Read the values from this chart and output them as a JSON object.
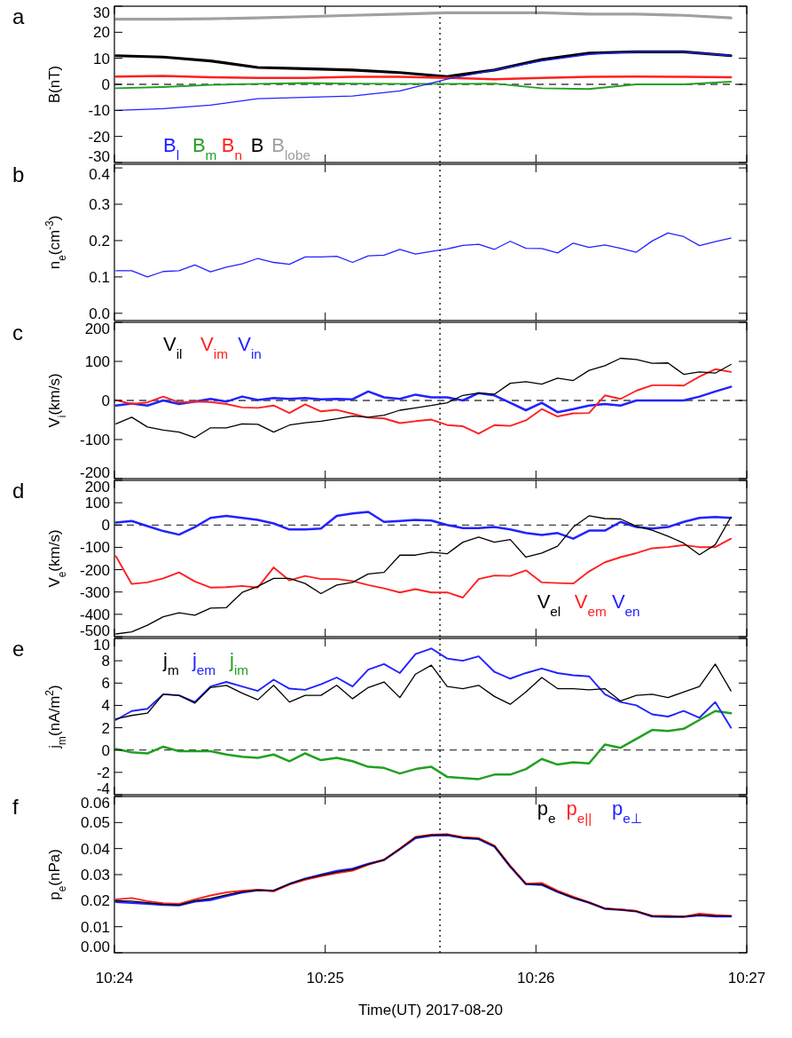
{
  "chart_data": [
    {
      "type": "line",
      "annotations": [
        "a"
      ],
      "ylabel": "B(nT)",
      "xlim": [
        10.4,
        10.45
      ],
      "xticks": [
        {
          "value": 10.4,
          "label": null
        },
        {
          "value": 10.41667,
          "label": null
        },
        {
          "value": 10.43333,
          "label": null
        },
        {
          "value": 10.45,
          "label": null
        }
      ],
      "ylim": [
        -30,
        30
      ],
      "yticks": [
        -30,
        -20,
        -10,
        0,
        10,
        20,
        30
      ],
      "tick_labels": "y",
      "legend": "bottom left",
      "x": [
        10.40012,
        10.40386,
        10.4076,
        10.41134,
        10.41508,
        10.41883,
        10.42257,
        10.42631,
        10.43005,
        10.43379,
        10.43753,
        10.44127,
        10.44501,
        10.44875
      ],
      "ref_lines": [
        {
          "axis": "x",
          "value": 10.42574,
          "line_style": "dotted"
        },
        {
          "axis": "y",
          "value": 0,
          "line_style": "dashed"
        }
      ],
      "series": [
        {
          "name": "B$_{l}$",
          "color": "#2222ff",
          "values": [
            -10,
            -9.3,
            -8,
            -5.5,
            -5,
            -4.5,
            -2.5,
            2,
            5.5,
            9,
            11.5,
            12.5,
            12.5,
            11
          ]
        },
        {
          "name": "B$_{m}$",
          "color": "#22a022",
          "values": [
            -1.5,
            -1,
            -0.2,
            0.2,
            0.5,
            0.3,
            0.2,
            0.2,
            0.3,
            -1.5,
            -1.8,
            0,
            0,
            1
          ]
        },
        {
          "name": "B$_{n}$",
          "color": "#ff2020",
          "values": [
            3,
            3.2,
            2.7,
            2.5,
            2.5,
            2.9,
            2.9,
            2.5,
            2,
            2.5,
            2.9,
            3,
            2.9,
            2.7
          ]
        },
        {
          "name": "B",
          "color": "#000000",
          "values": [
            11,
            10.5,
            9,
            6.5,
            6,
            5.5,
            4.5,
            3,
            5.5,
            9.5,
            12,
            12.5,
            12.5,
            11
          ]
        },
        {
          "name": "B$_{lobe}$",
          "color": "#a0a0a0",
          "values": [
            25,
            25,
            25.2,
            25.5,
            26,
            26.5,
            27,
            27.5,
            27.5,
            27.5,
            27,
            27,
            26.5,
            25.5
          ]
        }
      ]
    },
    {
      "type": "line",
      "annotations": [
        "b"
      ],
      "ylabel": "n$_{e}$(cm$^{-3}$)",
      "xlim": [
        10.4,
        10.45
      ],
      "xticks": [
        {
          "value": 10.4,
          "label": null
        },
        {
          "value": 10.41667,
          "label": null
        },
        {
          "value": 10.43333,
          "label": null
        },
        {
          "value": 10.45,
          "label": null
        }
      ],
      "ylim": [
        -0.02,
        0.41
      ],
      "yticks": [
        {
          "value": 0,
          "label": "0.0"
        },
        0.1,
        0.2,
        0.3,
        0.4
      ],
      "tick_labels": "y",
      "x": [
        10.40012,
        10.40137,
        10.40261,
        10.40386,
        10.40511,
        10.40636,
        10.4076,
        10.40885,
        10.4101,
        10.41134,
        10.41259,
        10.41384,
        10.41508,
        10.41633,
        10.41758,
        10.41883,
        10.42007,
        10.42132,
        10.42257,
        10.42381,
        10.42506,
        10.42631,
        10.42755,
        10.4288,
        10.43005,
        10.4313,
        10.43254,
        10.43379,
        10.43504,
        10.43628,
        10.43753,
        10.43878,
        10.44002,
        10.44127,
        10.44252,
        10.44377,
        10.44501,
        10.44626,
        10.44751,
        10.44875
      ],
      "ref_lines": [
        {
          "axis": "x",
          "value": 10.42574,
          "line_style": "dotted"
        }
      ],
      "series": [
        {
          "color": "#2222ff",
          "values": [
            0.117,
            0.117,
            0.1,
            0.115,
            0.117,
            0.133,
            0.114,
            0.127,
            0.136,
            0.151,
            0.14,
            0.135,
            0.155,
            0.155,
            0.157,
            0.14,
            0.158,
            0.16,
            0.176,
            0.163,
            0.17,
            0.177,
            0.187,
            0.19,
            0.176,
            0.198,
            0.179,
            0.178,
            0.166,
            0.193,
            0.181,
            0.188,
            0.179,
            0.168,
            0.199,
            0.221,
            0.211,
            0.186,
            0.197,
            0.207
          ]
        }
      ]
    },
    {
      "type": "line",
      "annotations": [
        "c"
      ],
      "ylabel": "V$_{i}$(km/s)",
      "xlim": [
        10.4,
        10.45
      ],
      "xticks": [
        {
          "value": 10.4,
          "label": null
        },
        {
          "value": 10.41667,
          "label": null
        },
        {
          "value": 10.43333,
          "label": null
        },
        {
          "value": 10.45,
          "label": null
        }
      ],
      "ylim": [
        -200,
        200
      ],
      "yticks": [
        -200,
        -100,
        0,
        100,
        200
      ],
      "tick_labels": "y",
      "legend": "top left",
      "x": [
        10.40012,
        10.40137,
        10.40261,
        10.40386,
        10.40511,
        10.40636,
        10.4076,
        10.40885,
        10.4101,
        10.41134,
        10.41259,
        10.41384,
        10.41508,
        10.41633,
        10.41758,
        10.41883,
        10.42007,
        10.42132,
        10.42257,
        10.42381,
        10.42506,
        10.42631,
        10.42755,
        10.4288,
        10.43005,
        10.4313,
        10.43254,
        10.43379,
        10.43504,
        10.43628,
        10.43753,
        10.43878,
        10.44002,
        10.44127,
        10.44252,
        10.44377,
        10.44501,
        10.44626,
        10.44751,
        10.44875
      ],
      "ref_lines": [
        {
          "axis": "x",
          "value": 10.42574,
          "line_style": "dotted"
        },
        {
          "axis": "y",
          "value": 0,
          "line_style": "dashed"
        }
      ],
      "series": [
        {
          "name": "V$_{il}$",
          "color": "#000000",
          "values": [
            -60,
            -43,
            -68,
            -76,
            -81,
            -95,
            -70,
            -70,
            -60,
            -61,
            -81,
            -63,
            -57,
            -53,
            -47,
            -40,
            -43,
            -38,
            -25,
            -19,
            -13,
            -6,
            13,
            19,
            16,
            44,
            48,
            42,
            57,
            51,
            77,
            89,
            108,
            105,
            95,
            96,
            67,
            73,
            70,
            92
          ]
        },
        {
          "name": "V$_{im}$",
          "color": "#ff2020",
          "values": [
            1,
            -9,
            -5,
            10,
            -5,
            -3,
            -4,
            -9,
            -18,
            -19,
            -13,
            -32,
            -10,
            -28,
            -24,
            -34,
            -44,
            -46,
            -58,
            -53,
            -49,
            -63,
            -66,
            -85,
            -63,
            -65,
            -51,
            -22,
            -41,
            -33,
            -32,
            13,
            4,
            25,
            39,
            39,
            38,
            61,
            80,
            73
          ]
        },
        {
          "name": "V$_{in}$",
          "color": "#2222ff",
          "values": [
            -13,
            -8,
            -13,
            0,
            -9,
            -3,
            4,
            -3,
            10,
            1,
            6,
            4,
            6,
            3,
            4,
            3,
            23,
            8,
            4,
            15,
            8,
            8,
            0,
            19,
            13,
            -6,
            -25,
            -6,
            -30,
            -22,
            -13,
            -9,
            -13,
            0,
            0,
            0,
            0,
            10,
            23,
            35
          ]
        }
      ]
    },
    {
      "type": "line",
      "annotations": [
        "d"
      ],
      "ylabel": "V$_{e}$(km/s)",
      "xlim": [
        10.4,
        10.45
      ],
      "xticks": [
        {
          "value": 10.4,
          "label": null
        },
        {
          "value": 10.41667,
          "label": null
        },
        {
          "value": 10.43333,
          "label": null
        },
        {
          "value": 10.45,
          "label": null
        }
      ],
      "ylim": [
        -500,
        200
      ],
      "yticks": [
        -500,
        -400,
        -300,
        -200,
        -100,
        0,
        100,
        200
      ],
      "tick_labels": "y",
      "legend": "bottom right",
      "x": [
        10.40012,
        10.40137,
        10.40261,
        10.40386,
        10.40511,
        10.40636,
        10.4076,
        10.40885,
        10.4101,
        10.41134,
        10.41259,
        10.41384,
        10.41508,
        10.41633,
        10.41758,
        10.41883,
        10.42007,
        10.42132,
        10.42257,
        10.42381,
        10.42506,
        10.42631,
        10.42755,
        10.4288,
        10.43005,
        10.4313,
        10.43254,
        10.43379,
        10.43504,
        10.43628,
        10.43753,
        10.43878,
        10.44002,
        10.44127,
        10.44252,
        10.44377,
        10.44501,
        10.44626,
        10.44751,
        10.44875
      ],
      "ref_lines": [
        {
          "axis": "x",
          "value": 10.42574,
          "line_style": "dotted"
        },
        {
          "axis": "y",
          "value": 0,
          "line_style": "dashed"
        }
      ],
      "series": [
        {
          "name": "V$_{el}$",
          "color": "#000000",
          "values": [
            -488,
            -479,
            -449,
            -411,
            -393,
            -404,
            -372,
            -370,
            -302,
            -275,
            -239,
            -239,
            -262,
            -307,
            -269,
            -257,
            -219,
            -212,
            -135,
            -135,
            -122,
            -129,
            -77,
            -54,
            -77,
            -65,
            -144,
            -126,
            -95,
            -9,
            41,
            29,
            27,
            -5,
            -23,
            -50,
            -81,
            -133,
            -88,
            36
          ]
        },
        {
          "name": "V$_{em}$",
          "color": "#ff2020",
          "values": [
            -140,
            -264,
            -257,
            -239,
            -212,
            -253,
            -280,
            -278,
            -273,
            -280,
            -190,
            -248,
            -228,
            -242,
            -242,
            -251,
            -269,
            -284,
            -302,
            -287,
            -302,
            -302,
            -325,
            -242,
            -226,
            -228,
            -203,
            -257,
            -260,
            -262,
            -208,
            -167,
            -144,
            -126,
            -104,
            -99,
            -90,
            -99,
            -99,
            -61
          ]
        },
        {
          "name": "V$_{en}$",
          "color": "#2222ff",
          "values": [
            11,
            18,
            -5,
            -27,
            -43,
            -9,
            32,
            41,
            32,
            23,
            7,
            -20,
            -20,
            -16,
            41,
            52,
            59,
            14,
            18,
            23,
            20,
            0,
            -14,
            -14,
            -9,
            -20,
            -36,
            -45,
            -36,
            -61,
            -25,
            -25,
            14,
            -9,
            -16,
            -9,
            14,
            32,
            36,
            32
          ]
        }
      ]
    },
    {
      "type": "line",
      "annotations": [
        "e"
      ],
      "ylabel": "j$_{m}$(nA/m$^{2}$)",
      "xlim": [
        10.4,
        10.45
      ],
      "xticks": [
        {
          "value": 10.4,
          "label": null
        },
        {
          "value": 10.41667,
          "label": null
        },
        {
          "value": 10.43333,
          "label": null
        },
        {
          "value": 10.45,
          "label": null
        }
      ],
      "ylim": [
        -4,
        10
      ],
      "yticks": [
        -4,
        -2,
        0,
        2,
        4,
        6,
        8,
        10
      ],
      "tick_labels": "y",
      "legend": "top left",
      "x": [
        10.40012,
        10.40137,
        10.40261,
        10.40386,
        10.40511,
        10.40636,
        10.4076,
        10.40885,
        10.4101,
        10.41134,
        10.41259,
        10.41384,
        10.41508,
        10.41633,
        10.41758,
        10.41883,
        10.42007,
        10.42132,
        10.42257,
        10.42381,
        10.42506,
        10.42631,
        10.42755,
        10.4288,
        10.43005,
        10.4313,
        10.43254,
        10.43379,
        10.43504,
        10.43628,
        10.43753,
        10.43878,
        10.44002,
        10.44127,
        10.44252,
        10.44377,
        10.44501,
        10.44626,
        10.44751,
        10.44875
      ],
      "ref_lines": [
        {
          "axis": "x",
          "value": 10.42574,
          "line_style": "dotted"
        },
        {
          "axis": "y",
          "value": 0,
          "line_style": "dashed"
        }
      ],
      "series": [
        {
          "name": "j$_{m}$",
          "color": "#000000",
          "values": [
            2.8,
            3.1,
            3.3,
            5,
            4.9,
            4.2,
            5.6,
            5.8,
            5.1,
            4.5,
            5.8,
            4.3,
            4.9,
            4.9,
            5.8,
            4.6,
            5.6,
            6.1,
            4.7,
            6.8,
            7.6,
            5.7,
            5.5,
            5.8,
            4.8,
            4.1,
            5.2,
            6.5,
            5.5,
            5.5,
            5.4,
            5.5,
            4.4,
            4.9,
            5,
            4.7,
            5.2,
            5.7,
            7.7,
            5.3
          ]
        },
        {
          "name": "j$_{em}$",
          "color": "#2222ff",
          "values": [
            2.7,
            3.5,
            3.7,
            5,
            4.9,
            4.3,
            5.7,
            6.1,
            5.7,
            5.3,
            6.3,
            5.5,
            5.4,
            5.9,
            6.5,
            5.7,
            7.2,
            7.7,
            6.9,
            8.6,
            9.1,
            8.2,
            8,
            8.4,
            7,
            6.4,
            6.9,
            7.3,
            6.9,
            6.7,
            6.6,
            5,
            4.3,
            4,
            3.2,
            3,
            3.5,
            2.9,
            4.3,
            2
          ]
        },
        {
          "name": "j$_{im}$",
          "color": "#22a022",
          "values": [
            0.1,
            -0.2,
            -0.3,
            0.3,
            -0.1,
            -0.1,
            -0.1,
            -0.4,
            -0.6,
            -0.7,
            -0.4,
            -1,
            -0.3,
            -0.9,
            -0.7,
            -1,
            -1.5,
            -1.6,
            -2.1,
            -1.7,
            -1.5,
            -2.4,
            -2.5,
            -2.6,
            -2.2,
            -2.2,
            -1.7,
            -0.8,
            -1.3,
            -1.1,
            -1.2,
            0.5,
            0.2,
            1,
            1.8,
            1.7,
            1.9,
            2.7,
            3.5,
            3.3
          ]
        }
      ]
    },
    {
      "type": "line",
      "annotations": [
        "f"
      ],
      "ylabel": "p$_{e}$(nPa)",
      "xlabel": "Time(UT) 2017-08-20",
      "xlim": [
        10.4,
        10.45
      ],
      "xticks": [
        {
          "value": 10.4,
          "label": "10:24"
        },
        {
          "value": 10.41667,
          "label": "10:25"
        },
        {
          "value": 10.43333,
          "label": "10:26"
        },
        {
          "value": 10.45,
          "label": "10:27"
        }
      ],
      "ylim": [
        0,
        0.06
      ],
      "yticks": [
        {
          "value": 0,
          "label": "0.00"
        },
        {
          "value": 0.01,
          "label": "0.01"
        },
        {
          "value": 0.02,
          "label": "0.02"
        },
        {
          "value": 0.03,
          "label": "0.03"
        },
        {
          "value": 0.04,
          "label": "0.04"
        },
        {
          "value": 0.05,
          "label": "0.05"
        },
        {
          "value": 0.06,
          "label": "0.06"
        }
      ],
      "legend": "top right",
      "x": [
        10.40012,
        10.40137,
        10.40261,
        10.40386,
        10.40511,
        10.40636,
        10.4076,
        10.40885,
        10.4101,
        10.41134,
        10.41259,
        10.41384,
        10.41508,
        10.41633,
        10.41758,
        10.41883,
        10.42007,
        10.42132,
        10.42257,
        10.42381,
        10.42506,
        10.42631,
        10.42755,
        10.4288,
        10.43005,
        10.4313,
        10.43254,
        10.43379,
        10.43504,
        10.43628,
        10.43753,
        10.43878,
        10.44002,
        10.44127,
        10.44252,
        10.44377,
        10.44501,
        10.44626,
        10.44751,
        10.44875
      ],
      "ref_lines": [
        {
          "axis": "x",
          "value": 10.42574,
          "line_style": "dotted"
        }
      ],
      "series": [
        {
          "name": "p$_{e}$",
          "color": "#000000",
          "values": [
            0.02,
            0.0198,
            0.0192,
            0.0186,
            0.0184,
            0.02,
            0.0208,
            0.0222,
            0.0234,
            0.0241,
            0.0238,
            0.0264,
            0.0283,
            0.0297,
            0.031,
            0.0319,
            0.034,
            0.0357,
            0.0399,
            0.0443,
            0.0452,
            0.0454,
            0.0442,
            0.0438,
            0.0409,
            0.0332,
            0.0264,
            0.0263,
            0.0235,
            0.0212,
            0.0193,
            0.017,
            0.0165,
            0.0159,
            0.0141,
            0.0139,
            0.0139,
            0.0145,
            0.0142,
            0.0141
          ]
        },
        {
          "name": "p$_{e||}$",
          "color": "#ff2020",
          "values": [
            0.0205,
            0.021,
            0.0198,
            0.019,
            0.0188,
            0.0205,
            0.022,
            0.0232,
            0.0238,
            0.0242,
            0.0236,
            0.0262,
            0.028,
            0.0294,
            0.0306,
            0.0315,
            0.0338,
            0.0357,
            0.04,
            0.0445,
            0.0454,
            0.0455,
            0.0444,
            0.044,
            0.0411,
            0.0334,
            0.0265,
            0.0268,
            0.0238,
            0.0215,
            0.0194,
            0.017,
            0.0166,
            0.016,
            0.0142,
            0.0142,
            0.0138,
            0.015,
            0.0145,
            0.0142
          ]
        },
        {
          "name": "p$_{e⊥}$",
          "color": "#2222ff",
          "values": [
            0.0195,
            0.0192,
            0.0188,
            0.0184,
            0.0182,
            0.0197,
            0.0203,
            0.0218,
            0.0232,
            0.024,
            0.0238,
            0.0264,
            0.0284,
            0.0299,
            0.0314,
            0.0322,
            0.0341,
            0.0356,
            0.0398,
            0.0441,
            0.045,
            0.0452,
            0.0441,
            0.0437,
            0.0408,
            0.0331,
            0.0264,
            0.0261,
            0.0234,
            0.0211,
            0.0192,
            0.0169,
            0.0165,
            0.0159,
            0.014,
            0.0138,
            0.0138,
            0.0144,
            0.014,
            0.014
          ]
        }
      ]
    }
  ]
}
